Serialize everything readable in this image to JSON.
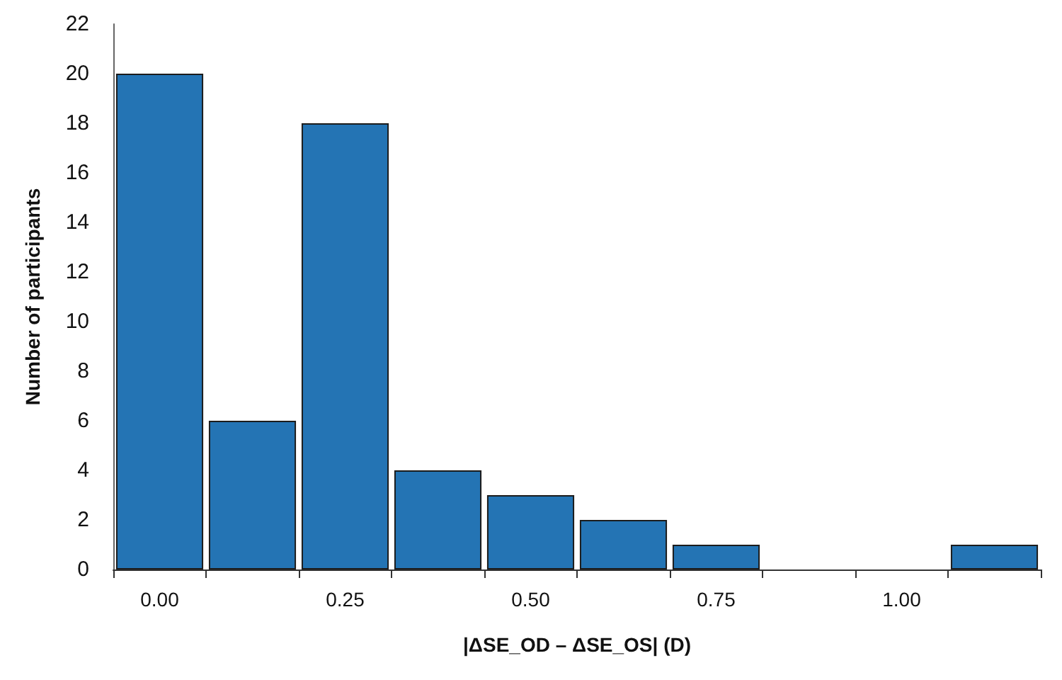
{
  "chart_data": {
    "type": "bar",
    "xlabel": "|ΔSE_OD – ΔSE_OS| (D)",
    "ylabel": "Number of participants",
    "categories": [
      "0.00",
      null,
      "0.25",
      null,
      "0.50",
      null,
      "0.75",
      null,
      "1.00",
      null
    ],
    "values": [
      20,
      6,
      18,
      4,
      3,
      2,
      1,
      0,
      0,
      1
    ],
    "color": "#2474b4",
    "ylim": [
      0,
      22
    ],
    "yticks": [
      0,
      2,
      4,
      6,
      8,
      10,
      12,
      14,
      16,
      18,
      20,
      22
    ]
  }
}
